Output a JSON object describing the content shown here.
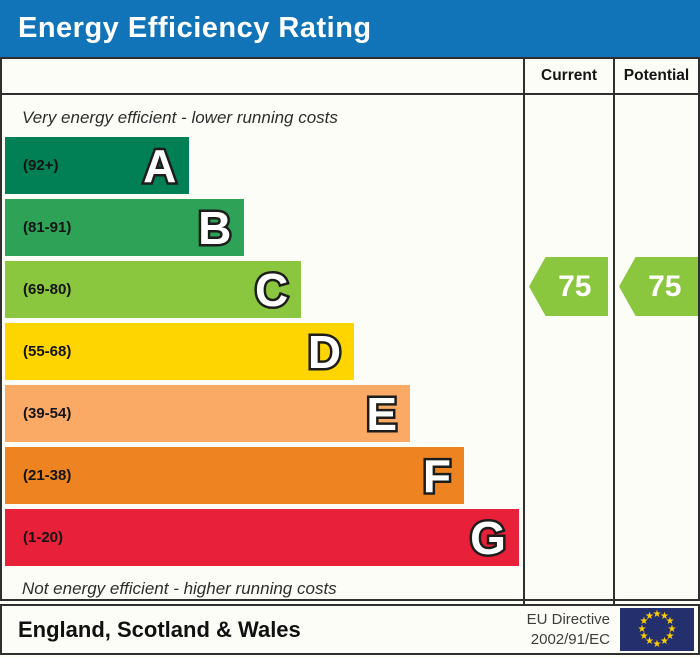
{
  "title": "Energy Efficiency Rating",
  "columns": {
    "current": "Current",
    "potential": "Potential"
  },
  "notes": {
    "top": "Very energy efficient - lower running costs",
    "bottom": "Not energy efficient - higher running costs"
  },
  "chart_data": {
    "type": "bar",
    "title": "Energy Efficiency Rating",
    "orientation": "horizontal",
    "bands": [
      {
        "letter": "A",
        "range": "(92+)",
        "color": "#008054",
        "width_pct": 35.6
      },
      {
        "letter": "B",
        "range": "(81-91)",
        "color": "#2ea358",
        "width_pct": 46.2
      },
      {
        "letter": "C",
        "range": "(69-80)",
        "color": "#8bc63f",
        "width_pct": 57.2
      },
      {
        "letter": "D",
        "range": "(55-68)",
        "color": "#ffd500",
        "width_pct": 67.4
      },
      {
        "letter": "E",
        "range": "(39-54)",
        "color": "#fbaa65",
        "width_pct": 78.2
      },
      {
        "letter": "F",
        "range": "(21-38)",
        "color": "#ee8322",
        "width_pct": 88.6
      },
      {
        "letter": "G",
        "range": "(1-20)",
        "color": "#e8203a",
        "width_pct": 99.2
      }
    ],
    "current": {
      "value": "75",
      "band": "C",
      "color": "#8bc63f"
    },
    "potential": {
      "value": "75",
      "band": "C",
      "color": "#8bc63f"
    }
  },
  "footer": {
    "region": "England, Scotland & Wales",
    "directive_line1": "EU Directive",
    "directive_line2": "2002/91/EC"
  },
  "colors": {
    "header_bg": "#1173b8",
    "border": "#2f2f2f",
    "eu_flag_bg": "#24306e",
    "eu_star": "#ffcc00"
  }
}
